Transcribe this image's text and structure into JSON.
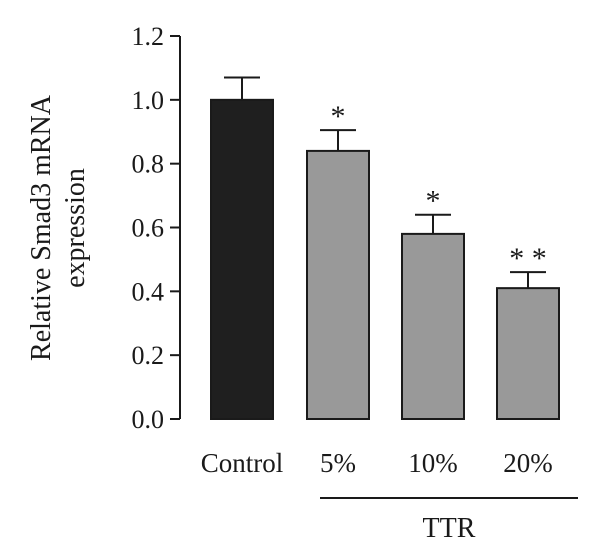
{
  "chart_data": {
    "type": "bar",
    "title": "",
    "ylabel_lines": [
      "Relative Smad3 mRNA",
      "expression"
    ],
    "xlabel": "",
    "categories": [
      "Control",
      "5%",
      "10%",
      "20%"
    ],
    "values": [
      1.0,
      0.84,
      0.58,
      0.41
    ],
    "errors": [
      0.07,
      0.065,
      0.06,
      0.05
    ],
    "significance": [
      "",
      "*",
      "*",
      "* *"
    ],
    "ylim": [
      0.0,
      1.2
    ],
    "yticks": [
      "0.0",
      "0.2",
      "0.4",
      "0.6",
      "0.8",
      "1.0",
      "1.2"
    ],
    "group_label": "TTR",
    "grid": false,
    "colors": {
      "control": "#1f1f1f",
      "treatment": "#999999",
      "edge": "#1a1a1a",
      "axis": "#1a1a1a"
    }
  }
}
